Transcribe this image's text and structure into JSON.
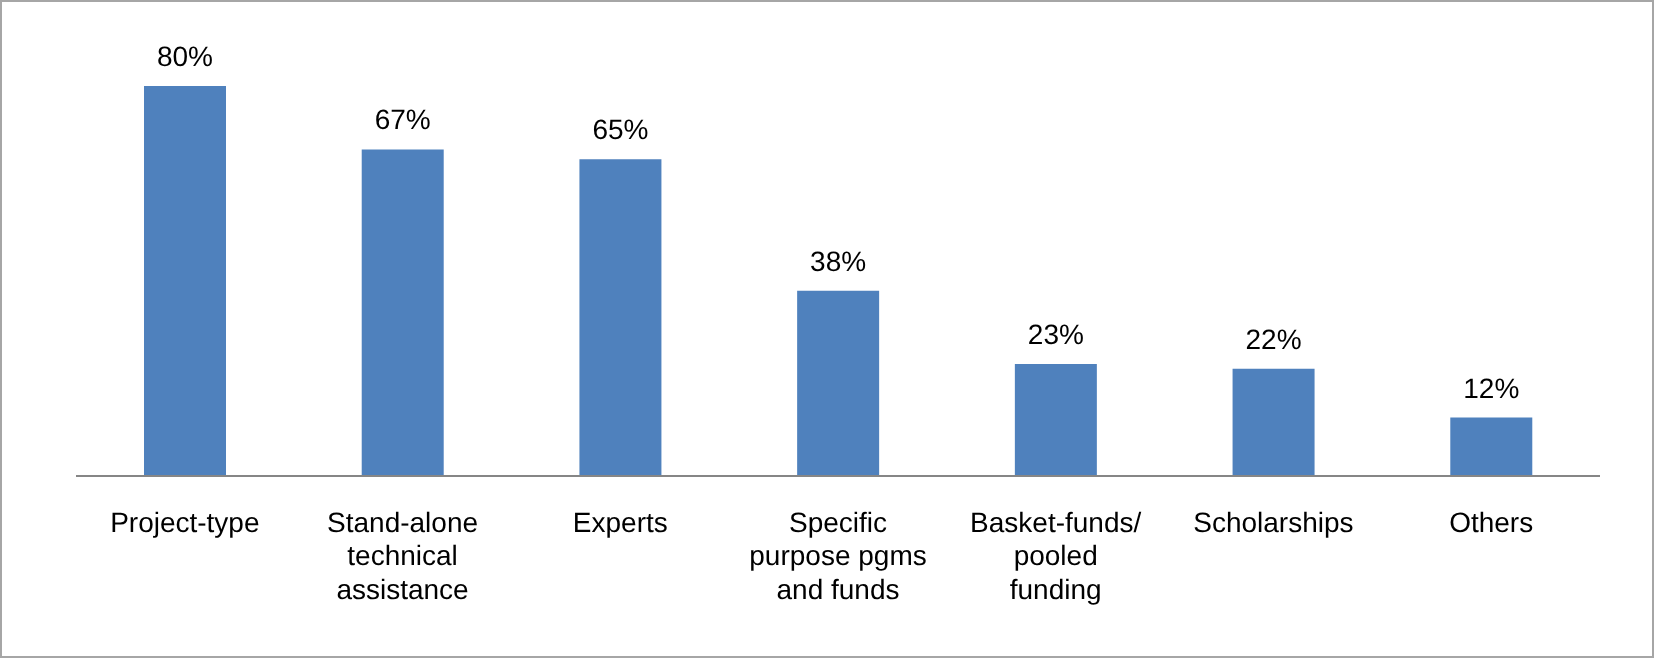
{
  "chart_data": {
    "type": "bar",
    "categories": [
      "Project-type",
      "Stand-alone technical assistance",
      "Experts",
      "Specific purpose pgms and funds",
      "Basket-funds/ pooled funding",
      "Scholarships",
      "Others"
    ],
    "values": [
      80,
      67,
      65,
      38,
      23,
      22,
      12
    ],
    "value_labels": [
      "80%",
      "67%",
      "65%",
      "38%",
      "23%",
      "22%",
      "12%"
    ],
    "color": "#4f81bd",
    "grid": false,
    "legend": false
  }
}
